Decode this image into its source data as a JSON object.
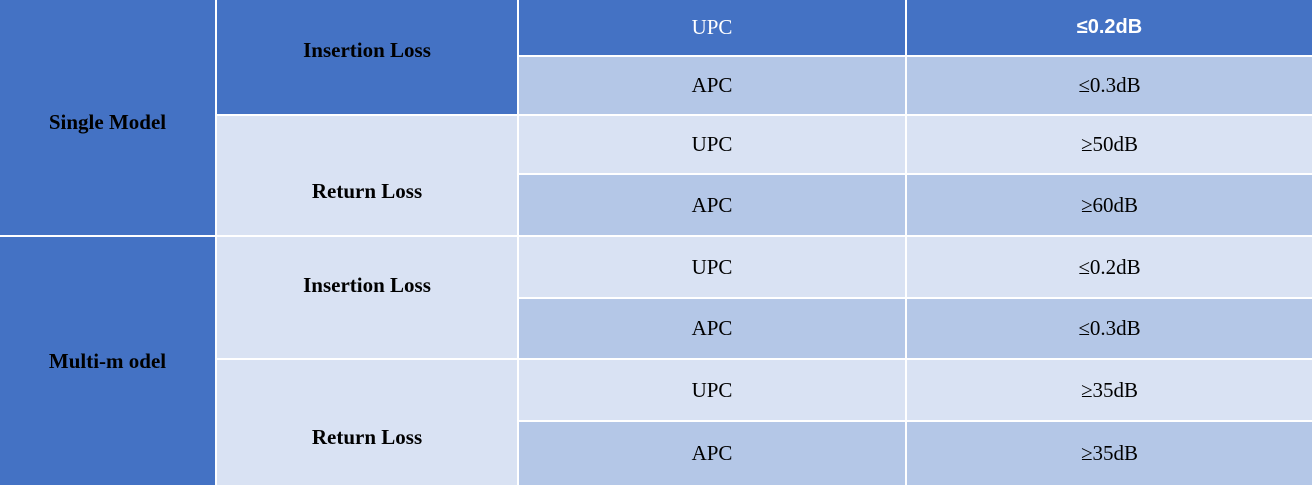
{
  "groups": [
    {
      "model": "Single Model",
      "metrics": [
        {
          "name": "Insertion Loss",
          "rows": [
            {
              "type": "UPC",
              "value": "≤0.2dB"
            },
            {
              "type": "APC",
              "value": "≤0.3dB"
            }
          ]
        },
        {
          "name": "Return Loss",
          "rows": [
            {
              "type": "UPC",
              "value": "≥50dB"
            },
            {
              "type": "APC",
              "value": "≥60dB"
            }
          ]
        }
      ]
    },
    {
      "model": "Multi-m odel",
      "metrics": [
        {
          "name": "Insertion Loss",
          "rows": [
            {
              "type": "UPC",
              "value": "≤0.2dB"
            },
            {
              "type": "APC",
              "value": "≤0.3dB"
            }
          ]
        },
        {
          "name": "Return Loss",
          "rows": [
            {
              "type": "UPC",
              "value": "≥35dB"
            },
            {
              "type": "APC",
              "value": "≥35dB"
            }
          ]
        }
      ]
    }
  ],
  "colors": {
    "dark": "#4472C4",
    "mid": "#B4C7E7",
    "light": "#D9E2F3"
  }
}
